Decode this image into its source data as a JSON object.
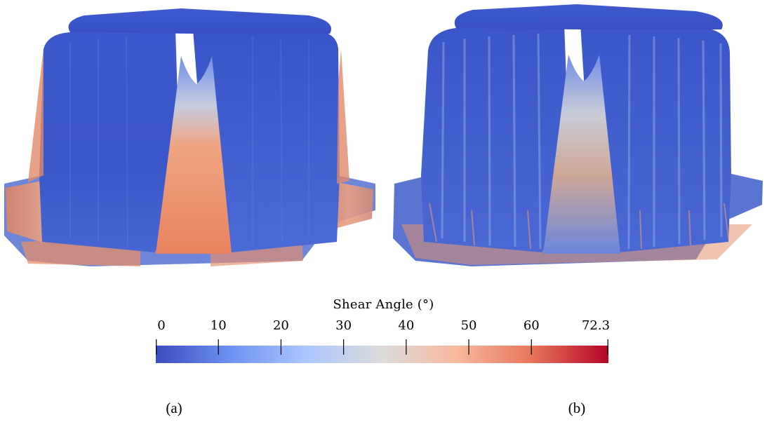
{
  "panels": [
    {
      "id": "a",
      "caption": "(a)"
    },
    {
      "id": "b",
      "caption": "(b)"
    }
  ],
  "colorbar": {
    "title": "Shear Angle (°)",
    "min": 0,
    "max": 72.3,
    "ticks": [
      0,
      10,
      20,
      30,
      40,
      50,
      60,
      72.3
    ],
    "tick_labels": [
      "0",
      "10",
      "20",
      "30",
      "40",
      "50",
      "60",
      "72.3"
    ],
    "colormap": [
      "#3b4cc0",
      "#6f92f3",
      "#aac7fd",
      "#dddcdc",
      "#f7b89c",
      "#e7745b",
      "#b40426"
    ]
  },
  "colors": {
    "low": "#3b55c7",
    "mid_low": "#5a7be0",
    "mid": "#c9c9c9",
    "high": "#ee8a67",
    "base_shadow": "#2c3f9e"
  }
}
